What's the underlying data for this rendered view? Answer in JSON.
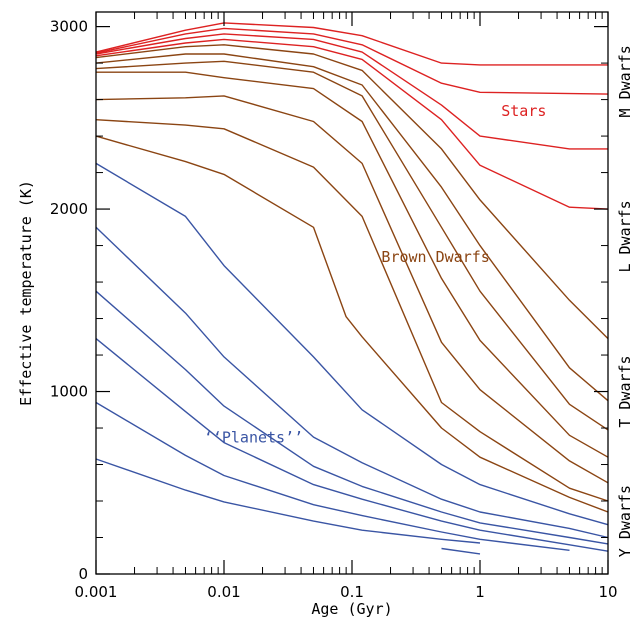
{
  "chart_data": {
    "type": "line",
    "xlabel": "Age (Gyr)",
    "ylabel": "Effective temperature (K)",
    "xscale": "log",
    "xlim": [
      0.001,
      10
    ],
    "ylim": [
      0,
      3080
    ],
    "x_ticks": [
      {
        "value": 0.001,
        "label": "0.001"
      },
      {
        "value": 0.01,
        "label": "0.01"
      },
      {
        "value": 0.1,
        "label": "0.1"
      },
      {
        "value": 1,
        "label": "1"
      },
      {
        "value": 10,
        "label": "10"
      }
    ],
    "y_ticks": [
      {
        "value": 0,
        "label": "0"
      },
      {
        "value": 1000,
        "label": "1000"
      },
      {
        "value": 2000,
        "label": "2000"
      },
      {
        "value": 3000,
        "label": "3000"
      }
    ],
    "spectral_classes": [
      {
        "label": "M Dwarfs",
        "temp": 2700
      },
      {
        "label": "L Dwarfs",
        "temp": 1850
      },
      {
        "label": "T Dwarfs",
        "temp": 1000
      },
      {
        "label": "Y Dwarfs",
        "temp": 290
      }
    ],
    "annotations": [
      {
        "text": "Stars",
        "x": 2.2,
        "y": 2510,
        "color": "#dd2222"
      },
      {
        "text": "Brown Dwarfs",
        "x": 0.45,
        "y": 1710,
        "color": "#8b4513"
      },
      {
        "text": "‘‘Planets’’",
        "x": 0.017,
        "y": 720,
        "color": "#3a55a4"
      }
    ],
    "groups": [
      {
        "color": "#dd2222",
        "series": [
          {
            "x": [
              0.001,
              0.005,
              0.01,
              0.05,
              0.12,
              0.5,
              1,
              10
            ],
            "y": [
              2860,
              2980,
              3020,
              2995,
              2950,
              2800,
              2790,
              2790
            ]
          },
          {
            "x": [
              0.001,
              0.005,
              0.01,
              0.05,
              0.12,
              0.5,
              1,
              10
            ],
            "y": [
              2855,
              2960,
              2990,
              2960,
              2900,
              2690,
              2640,
              2630
            ]
          },
          {
            "x": [
              0.001,
              0.005,
              0.01,
              0.05,
              0.12,
              0.5,
              1,
              5,
              10
            ],
            "y": [
              2850,
              2935,
              2960,
              2930,
              2860,
              2570,
              2400,
              2330,
              2330
            ]
          },
          {
            "x": [
              0.001,
              0.005,
              0.01,
              0.05,
              0.12,
              0.5,
              1,
              5,
              10
            ],
            "y": [
              2840,
              2910,
              2930,
              2890,
              2820,
              2490,
              2240,
              2010,
              2000
            ]
          }
        ]
      },
      {
        "color": "#8b4513",
        "series": [
          {
            "x": [
              0.001,
              0.005,
              0.01,
              0.05,
              0.12,
              0.5,
              1,
              5,
              10
            ],
            "y": [
              2830,
              2890,
              2900,
              2850,
              2760,
              2330,
              2050,
              1500,
              1290
            ]
          },
          {
            "x": [
              0.001,
              0.005,
              0.01,
              0.05,
              0.12,
              0.5,
              1,
              5,
              10
            ],
            "y": [
              2800,
              2850,
              2850,
              2780,
              2680,
              2120,
              1800,
              1130,
              950
            ]
          },
          {
            "x": [
              0.001,
              0.005,
              0.01,
              0.05,
              0.12,
              0.5,
              1,
              5,
              10
            ],
            "y": [
              2770,
              2800,
              2810,
              2750,
              2620,
              1900,
              1550,
              930,
              790
            ]
          },
          {
            "x": [
              0.001,
              0.005,
              0.01,
              0.05,
              0.12,
              0.5,
              1,
              5,
              10
            ],
            "y": [
              2750,
              2750,
              2720,
              2660,
              2480,
              1620,
              1280,
              760,
              640
            ]
          },
          {
            "x": [
              0.001,
              0.005,
              0.01,
              0.05,
              0.12,
              0.5,
              1,
              5,
              10
            ],
            "y": [
              2600,
              2610,
              2620,
              2480,
              2250,
              1270,
              1010,
              620,
              500
            ]
          },
          {
            "x": [
              0.001,
              0.005,
              0.01,
              0.05,
              0.12,
              0.5,
              1,
              5,
              10
            ],
            "y": [
              2490,
              2460,
              2440,
              2230,
              1960,
              940,
              780,
              470,
              400
            ]
          },
          {
            "x": [
              0.001,
              0.005,
              0.01,
              0.05,
              0.09,
              0.12,
              0.5,
              1,
              5,
              10
            ],
            "y": [
              2400,
              2260,
              2190,
              1900,
              1410,
              1300,
              800,
              640,
              420,
              340
            ]
          }
        ]
      },
      {
        "color": "#3a55a4",
        "series": [
          {
            "x": [
              0.001,
              0.005,
              0.01,
              0.05,
              0.12,
              0.5,
              1,
              5,
              10
            ],
            "y": [
              2250,
              1960,
              1690,
              1190,
              900,
              600,
              490,
              330,
              270
            ]
          },
          {
            "x": [
              0.001,
              0.005,
              0.01,
              0.05,
              0.12,
              0.5,
              1,
              5,
              10
            ],
            "y": [
              1900,
              1430,
              1190,
              750,
              610,
              410,
              340,
              250,
              200
            ]
          },
          {
            "x": [
              0.001,
              0.005,
              0.01,
              0.05,
              0.12,
              0.5,
              1,
              5,
              10
            ],
            "y": [
              1550,
              1120,
              920,
              590,
              480,
              340,
              280,
              200,
              165
            ]
          },
          {
            "x": [
              0.001,
              0.005,
              0.01,
              0.05,
              0.12,
              0.5,
              1,
              5,
              10
            ],
            "y": [
              1290,
              890,
              720,
              490,
              410,
              290,
              240,
              160,
              125
            ]
          },
          {
            "x": [
              0.001,
              0.005,
              0.01,
              0.05,
              0.12,
              0.5,
              1,
              5
            ],
            "y": [
              940,
              650,
              540,
              380,
              320,
              230,
              190,
              130
            ]
          },
          {
            "x": [
              0.001,
              0.005,
              0.01,
              0.05,
              0.12,
              0.5,
              1
            ],
            "y": [
              630,
              460,
              395,
              290,
              240,
              190,
              170
            ]
          },
          {
            "x": [
              0.5,
              1
            ],
            "y": [
              140,
              110
            ]
          }
        ]
      }
    ]
  }
}
